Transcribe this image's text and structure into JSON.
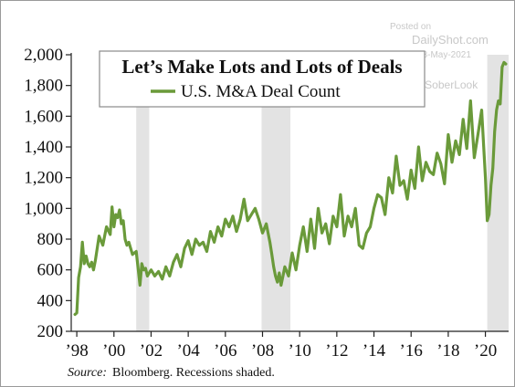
{
  "watermark": {
    "posted_on": "Posted on",
    "site": "DailyShot.com",
    "date": "03-May-2021",
    "handle": "@SoberLook"
  },
  "source": {
    "label": "Source:",
    "text": "Bloomberg. Recessions shaded."
  },
  "colors": {
    "series": "#6a9a3a",
    "recession": "#e3e3e3",
    "axis": "#222222"
  },
  "chart_data": {
    "type": "line",
    "title": "Let’s Make Lots and Lots of Deals",
    "xlabel": "",
    "ylabel": "",
    "xlim": [
      1997.7,
      2021.25
    ],
    "ylim": [
      200,
      2000
    ],
    "grid": false,
    "legend_position": "top-center",
    "y_ticks": [
      200,
      400,
      600,
      800,
      1000,
      1200,
      1400,
      1600,
      1800,
      2000
    ],
    "y_tick_labels": [
      "200",
      "400",
      "600",
      "800",
      "1,000",
      "1,200",
      "1,400",
      "1,600",
      "1,800",
      "2,000"
    ],
    "x_ticks": [
      1998,
      2000,
      2002,
      2004,
      2006,
      2008,
      2010,
      2012,
      2014,
      2016,
      2018,
      2020
    ],
    "x_tick_labels": [
      "’98",
      "’00",
      "’02",
      "’04",
      "’06",
      "’08",
      "’10",
      "’12",
      "’14",
      "’16",
      "’18",
      "’20"
    ],
    "recessions": [
      [
        2001.2,
        2001.9
      ],
      [
        2007.95,
        2009.5
      ],
      [
        2020.1,
        2021.25
      ]
    ],
    "series": [
      {
        "name": "U.S. M&A Deal Count",
        "x": [
          1997.9,
          1998.0,
          1998.1,
          1998.2,
          1998.3,
          1998.4,
          1998.5,
          1998.6,
          1998.7,
          1998.8,
          1998.9,
          1999.0,
          1999.2,
          1999.4,
          1999.6,
          1999.8,
          1999.9,
          2000.0,
          2000.1,
          2000.2,
          2000.3,
          2000.4,
          2000.5,
          2000.6,
          2000.7,
          2000.8,
          2001.0,
          2001.2,
          2001.4,
          2001.5,
          2001.6,
          2001.7,
          2001.8,
          2001.9,
          2002.0,
          2002.2,
          2002.4,
          2002.6,
          2002.8,
          2003.0,
          2003.2,
          2003.4,
          2003.6,
          2003.8,
          2004.0,
          2004.2,
          2004.4,
          2004.6,
          2004.8,
          2005.0,
          2005.2,
          2005.4,
          2005.6,
          2005.8,
          2006.0,
          2006.2,
          2006.4,
          2006.6,
          2006.8,
          2007.0,
          2007.2,
          2007.4,
          2007.6,
          2007.8,
          2008.0,
          2008.2,
          2008.4,
          2008.5,
          2008.6,
          2008.7,
          2008.8,
          2008.9,
          2009.0,
          2009.1,
          2009.2,
          2009.4,
          2009.6,
          2009.8,
          2010.0,
          2010.2,
          2010.4,
          2010.6,
          2010.8,
          2011.0,
          2011.2,
          2011.4,
          2011.6,
          2011.8,
          2012.0,
          2012.2,
          2012.4,
          2012.6,
          2012.8,
          2013.0,
          2013.2,
          2013.4,
          2013.6,
          2013.8,
          2014.0,
          2014.2,
          2014.4,
          2014.6,
          2014.8,
          2015.0,
          2015.2,
          2015.4,
          2015.6,
          2015.8,
          2016.0,
          2016.2,
          2016.4,
          2016.6,
          2016.8,
          2017.0,
          2017.2,
          2017.4,
          2017.6,
          2017.8,
          2018.0,
          2018.2,
          2018.4,
          2018.6,
          2018.8,
          2019.0,
          2019.2,
          2019.4,
          2019.6,
          2019.8,
          2020.0,
          2020.1,
          2020.2,
          2020.3,
          2020.4,
          2020.5,
          2020.6,
          2020.7,
          2020.8,
          2020.9,
          2021.0,
          2021.1
        ],
        "values": [
          310,
          320,
          550,
          620,
          780,
          640,
          690,
          640,
          620,
          650,
          600,
          660,
          820,
          760,
          880,
          830,
          1010,
          880,
          960,
          940,
          990,
          900,
          920,
          800,
          760,
          780,
          700,
          720,
          500,
          640,
          600,
          610,
          560,
          580,
          600,
          560,
          590,
          540,
          620,
          560,
          650,
          700,
          620,
          740,
          790,
          700,
          800,
          760,
          780,
          720,
          850,
          780,
          880,
          820,
          930,
          880,
          950,
          850,
          930,
          1060,
          920,
          960,
          1000,
          930,
          840,
          900,
          780,
          700,
          620,
          560,
          520,
          580,
          500,
          560,
          620,
          560,
          710,
          600,
          760,
          880,
          720,
          930,
          740,
          1000,
          840,
          900,
          770,
          950,
          880,
          1090,
          820,
          950,
          880,
          1000,
          760,
          740,
          840,
          880,
          1000,
          1090,
          1070,
          960,
          1200,
          1100,
          1340,
          1150,
          1180,
          1060,
          1250,
          1130,
          1400,
          1180,
          1300,
          1240,
          1220,
          1360,
          1290,
          1160,
          1480,
          1300,
          1440,
          1350,
          1580,
          1390,
          1700,
          1330,
          1480,
          1640,
          1200,
          920,
          960,
          1150,
          1260,
          1500,
          1640,
          1700,
          1680,
          1920,
          1950,
          1940
        ]
      }
    ]
  }
}
